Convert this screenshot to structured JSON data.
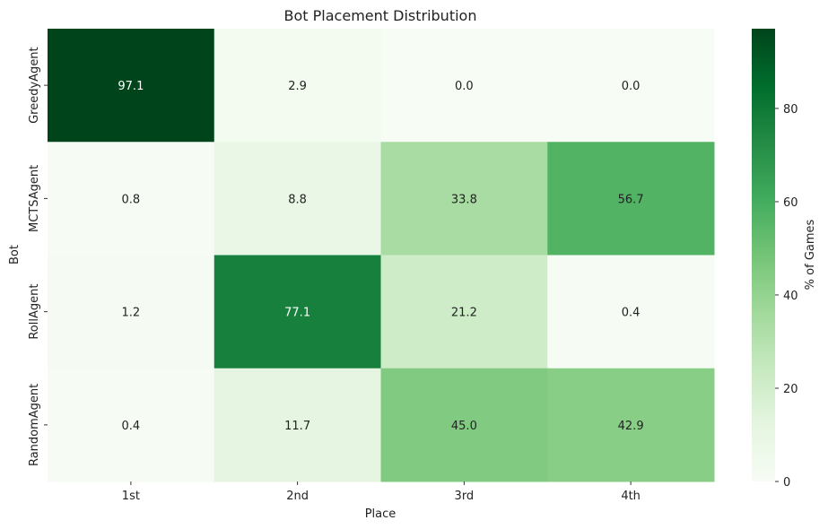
{
  "chart_data": {
    "type": "heatmap",
    "title": "Bot Placement Distribution",
    "xlabel": "Place",
    "ylabel": "Bot",
    "x_categories": [
      "1st",
      "2nd",
      "3rd",
      "4th"
    ],
    "y_categories": [
      "GreedyAgent",
      "MCTSAgent",
      "RollAgent",
      "RandomAgent"
    ],
    "values": [
      [
        97.1,
        2.9,
        0.0,
        0.0
      ],
      [
        0.8,
        8.8,
        33.8,
        56.7
      ],
      [
        1.2,
        77.1,
        21.2,
        0.4
      ],
      [
        0.4,
        11.7,
        45.0,
        42.9
      ]
    ],
    "value_format": "0.0",
    "colormap": "Greens",
    "colormap_stops": [
      "#f7fcf5",
      "#e5f5e0",
      "#c7e9c0",
      "#a1d99b",
      "#74c476",
      "#41ab5d",
      "#238b45",
      "#006d2c",
      "#00441b"
    ],
    "vmin": 0,
    "vmax": 97.1,
    "colorbar": {
      "label": "% of Games",
      "ticks": [
        "0",
        "20",
        "40",
        "60",
        "80"
      ],
      "tick_values": [
        0,
        20,
        40,
        60,
        80
      ]
    }
  }
}
